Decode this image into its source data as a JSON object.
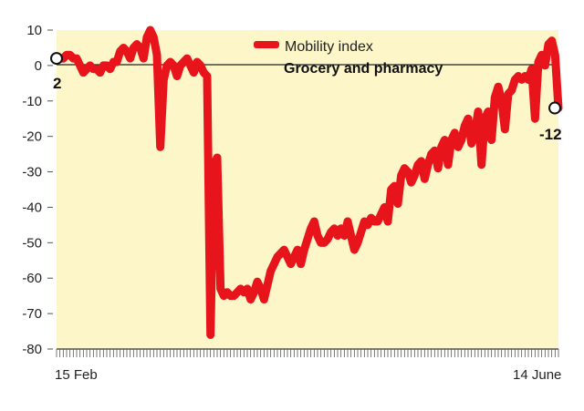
{
  "chart_data": {
    "type": "line",
    "title": "",
    "xlabel": "",
    "ylabel": "",
    "ylim": [
      -80,
      10
    ],
    "yticks": [
      10,
      0,
      -10,
      -20,
      -30,
      -40,
      -50,
      -60,
      -70,
      -80
    ],
    "grid": false,
    "zero_line": true,
    "legend": {
      "position": "top-center",
      "entries": [
        "Mobility index",
        "Grocery and pharmacy"
      ]
    },
    "x_start_label": "15 Feb",
    "x_end_label": "14 June",
    "annotations": {
      "start": "2",
      "end": "-12"
    },
    "colors": {
      "line": "#e8141b",
      "plot_bg": "#fdf6c9",
      "axis": "#333333",
      "zero_line": "#222222"
    },
    "series": [
      {
        "values": [
          2,
          2,
          2,
          3,
          3,
          2,
          2,
          0,
          -2,
          -1,
          0,
          -1,
          -1,
          -2,
          0,
          0,
          -1,
          1,
          1,
          4,
          5,
          4,
          2,
          5,
          6,
          5,
          2,
          8,
          10,
          8,
          3,
          -23,
          -4,
          0,
          1,
          0,
          -3,
          0,
          1,
          2,
          0,
          -2,
          1,
          0,
          -2,
          -3,
          -76,
          -28,
          -26,
          -63,
          -65,
          -64,
          -65,
          -65,
          -64,
          -63,
          -64,
          -63,
          -66,
          -64,
          -61,
          -63,
          -66,
          -62,
          -58,
          -56,
          -54,
          -53,
          -52,
          -54,
          -56,
          -54,
          -52,
          -56,
          -52,
          -49,
          -46,
          -44,
          -48,
          -50,
          -50,
          -49,
          -47,
          -46,
          -48,
          -46,
          -48,
          -44,
          -48,
          -52,
          -50,
          -47,
          -44,
          -45,
          -43,
          -44,
          -44,
          -42,
          -40,
          -44,
          -35,
          -34,
          -39,
          -31,
          -29,
          -30,
          -33,
          -31,
          -28,
          -27,
          -32,
          -28,
          -25,
          -24,
          -29,
          -23,
          -21,
          -28,
          -21,
          -19,
          -23,
          -21,
          -17,
          -15,
          -22,
          -19,
          -13,
          -28,
          -15,
          -13,
          -21,
          -9,
          -6,
          -10,
          -18,
          -8,
          -7,
          -4,
          -3,
          -4,
          -3,
          -4,
          -1,
          -15,
          1,
          3,
          0,
          6,
          7,
          3,
          -12
        ]
      }
    ]
  }
}
